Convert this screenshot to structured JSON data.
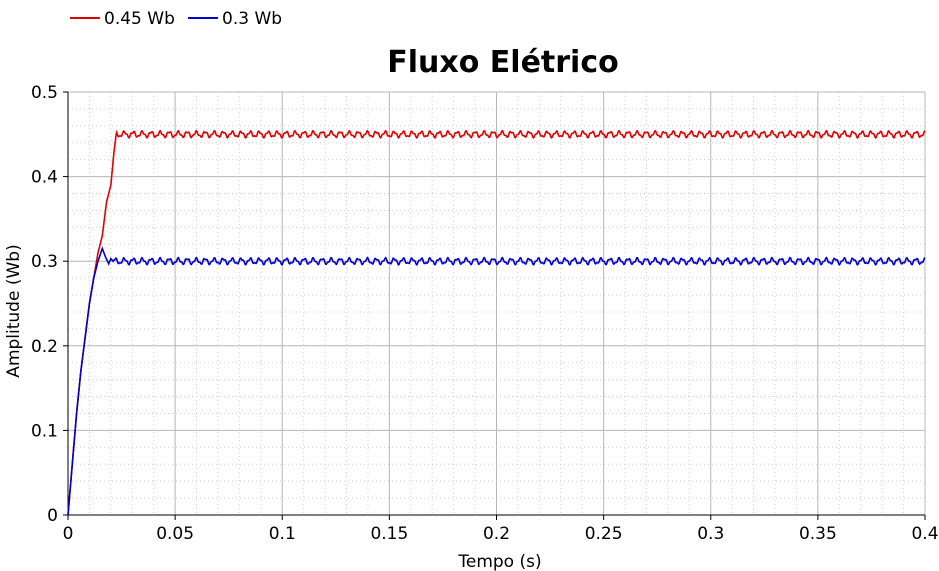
{
  "chart_data": {
    "type": "line",
    "title": "Fluxo Elétrico",
    "xlabel": "Tempo (s)",
    "ylabel": "Amplitude (Wb)",
    "xlim": [
      0,
      0.4
    ],
    "ylim": [
      0,
      0.5
    ],
    "grid": true,
    "legend_position": "top-left",
    "x_ticks": [
      0,
      0.05,
      0.1,
      0.15,
      0.2,
      0.25,
      0.3,
      0.35,
      0.4
    ],
    "x_tick_labels": [
      "0",
      "0.05",
      "0.1",
      "0.15",
      "0.2",
      "0.25",
      "0.3",
      "0.35",
      "0.4"
    ],
    "y_ticks": [
      0,
      0.1,
      0.2,
      0.3,
      0.4,
      0.5
    ],
    "y_tick_labels": [
      "0",
      "0.1",
      "0.2",
      "0.3",
      "0.4",
      "0.5"
    ],
    "series": [
      {
        "name": "0.45 Wb",
        "color": "#e00000",
        "x": [
          0,
          0.002,
          0.004,
          0.006,
          0.008,
          0.01,
          0.012,
          0.014,
          0.016,
          0.0165,
          0.018,
          0.02,
          0.0215,
          0.0225,
          0.03,
          0.05,
          0.1,
          0.15,
          0.2,
          0.25,
          0.3,
          0.35,
          0.4
        ],
        "values": [
          0,
          0.06,
          0.12,
          0.17,
          0.21,
          0.25,
          0.28,
          0.31,
          0.33,
          0.34,
          0.37,
          0.39,
          0.43,
          0.45,
          0.45,
          0.45,
          0.45,
          0.45,
          0.45,
          0.45,
          0.45,
          0.45,
          0.45
        ],
        "ripple_amplitude": 0.003,
        "ripple_from": 0.0225
      },
      {
        "name": "0.3 Wb",
        "color": "#0000d0",
        "x": [
          0,
          0.002,
          0.004,
          0.006,
          0.008,
          0.01,
          0.012,
          0.014,
          0.016,
          0.0175,
          0.019,
          0.02,
          0.021,
          0.03,
          0.05,
          0.1,
          0.15,
          0.2,
          0.25,
          0.3,
          0.35,
          0.4
        ],
        "values": [
          0,
          0.06,
          0.12,
          0.17,
          0.21,
          0.25,
          0.28,
          0.3,
          0.315,
          0.305,
          0.297,
          0.303,
          0.3,
          0.3,
          0.3,
          0.3,
          0.3,
          0.3,
          0.3,
          0.3,
          0.3,
          0.3
        ],
        "ripple_amplitude": 0.003,
        "ripple_from": 0.021
      }
    ]
  }
}
